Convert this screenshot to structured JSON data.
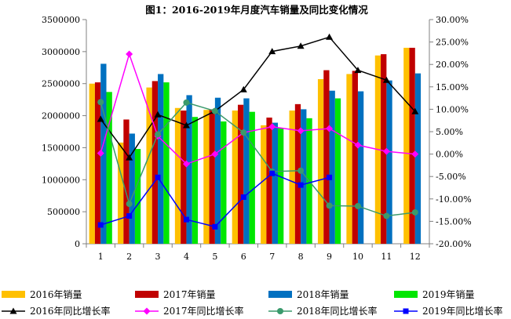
{
  "chart_data": {
    "type": "bar",
    "title": "图1：2016-2019年月度汽车销量及同比变化情况",
    "categories": [
      "1",
      "2",
      "3",
      "4",
      "5",
      "6",
      "7",
      "8",
      "9",
      "10",
      "11",
      "12"
    ],
    "left_axis": {
      "ylim": [
        0,
        3500000
      ],
      "ticks": [
        "0",
        "500000",
        "1000000",
        "1500000",
        "2000000",
        "2500000",
        "3000000",
        "3500000"
      ],
      "tick_values": [
        0,
        500000,
        1000000,
        1500000,
        2000000,
        2500000,
        3000000,
        3500000
      ]
    },
    "right_axis": {
      "ylim": [
        -20,
        30
      ],
      "ticks": [
        "-20.00%",
        "-15.00%",
        "-10.00%",
        "-5.00%",
        "0.00%",
        "5.00%",
        "10.00%",
        "15.00%",
        "20.00%",
        "25.00%",
        "30.00%"
      ],
      "tick_values": [
        -20,
        -15,
        -10,
        -5,
        0,
        5,
        10,
        15,
        20,
        25,
        30
      ]
    },
    "bar_series": [
      {
        "name": "2016年销量",
        "color": "#FFC000",
        "values": [
          2500000,
          1580000,
          2440000,
          2120000,
          2090000,
          2080000,
          1850000,
          2080000,
          2570000,
          2650000,
          2940000,
          3060000
        ]
      },
      {
        "name": "2017年销量",
        "color": "#C00000",
        "values": [
          2520000,
          1940000,
          2540000,
          2080000,
          2100000,
          2170000,
          1970000,
          2180000,
          2710000,
          2700000,
          2960000,
          3060000
        ]
      },
      {
        "name": "2018年销量",
        "color": "#0070C0",
        "values": [
          2810000,
          1720000,
          2650000,
          2320000,
          2280000,
          2270000,
          1890000,
          2100000,
          2390000,
          2380000,
          2550000,
          2660000
        ]
      },
      {
        "name": "2019年销量",
        "color": "#00E600",
        "values": [
          2370000,
          1480000,
          2520000,
          1980000,
          1910000,
          2060000,
          1810000,
          1960000,
          2270000,
          null,
          null,
          null
        ]
      }
    ],
    "line_series": [
      {
        "name": "2016年同比增长率",
        "color": "#000000",
        "marker": "triangle",
        "values": [
          7.8,
          -0.8,
          8.8,
          6.4,
          9.6,
          14.4,
          22.9,
          24.1,
          26.1,
          18.7,
          16.5,
          9.5
        ]
      },
      {
        "name": "2017年同比增长率",
        "color": "#FF00FF",
        "marker": "diamond",
        "values": [
          0.2,
          22.3,
          4.0,
          -2.2,
          0.0,
          4.8,
          6.1,
          5.2,
          5.7,
          2.0,
          0.6,
          0.0
        ]
      },
      {
        "name": "2018年同比增长率",
        "color": "#3A9A6C",
        "marker": "circle",
        "values": [
          11.6,
          -11.1,
          4.4,
          11.5,
          9.6,
          4.8,
          -3.9,
          -3.7,
          -11.5,
          -11.6,
          -13.8,
          -13.0
        ]
      },
      {
        "name": "2019年同比增长率",
        "color": "#0000FF",
        "marker": "square",
        "values": [
          -15.8,
          -13.8,
          -5.2,
          -14.6,
          -16.2,
          -9.6,
          -4.3,
          -6.9,
          -5.2,
          null,
          null,
          null
        ]
      }
    ]
  }
}
